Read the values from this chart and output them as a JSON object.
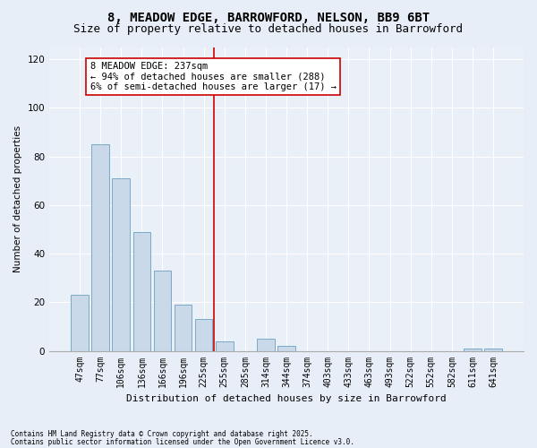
{
  "title1": "8, MEADOW EDGE, BARROWFORD, NELSON, BB9 6BT",
  "title2": "Size of property relative to detached houses in Barrowford",
  "xlabel": "Distribution of detached houses by size in Barrowford",
  "ylabel": "Number of detached properties",
  "categories": [
    "47sqm",
    "77sqm",
    "106sqm",
    "136sqm",
    "166sqm",
    "196sqm",
    "225sqm",
    "255sqm",
    "285sqm",
    "314sqm",
    "344sqm",
    "374sqm",
    "403sqm",
    "433sqm",
    "463sqm",
    "493sqm",
    "522sqm",
    "552sqm",
    "582sqm",
    "611sqm",
    "641sqm"
  ],
  "values": [
    23,
    85,
    71,
    49,
    33,
    19,
    13,
    4,
    0,
    5,
    2,
    0,
    0,
    0,
    0,
    0,
    0,
    0,
    0,
    1,
    1
  ],
  "bar_color": "#c9d9ea",
  "bar_edge_color": "#7aaac8",
  "vline_x": 6.5,
  "vline_color": "#cc0000",
  "annotation_text": "8 MEADOW EDGE: 237sqm\n← 94% of detached houses are smaller (288)\n6% of semi-detached houses are larger (17) →",
  "annotation_box_color": "#ffffff",
  "annotation_box_edge": "#cc0000",
  "ylim": [
    0,
    125
  ],
  "yticks": [
    0,
    20,
    40,
    60,
    80,
    100,
    120
  ],
  "footer1": "Contains HM Land Registry data © Crown copyright and database right 2025.",
  "footer2": "Contains public sector information licensed under the Open Government Licence v3.0.",
  "bg_color": "#e8eef8",
  "plot_bg_color": "#eaf0f8",
  "title1_fontsize": 10,
  "title2_fontsize": 9,
  "annot_fontsize": 7.5,
  "xlabel_fontsize": 8,
  "ylabel_fontsize": 7.5,
  "tick_fontsize": 7,
  "ytick_fontsize": 7.5,
  "footer_fontsize": 5.5
}
